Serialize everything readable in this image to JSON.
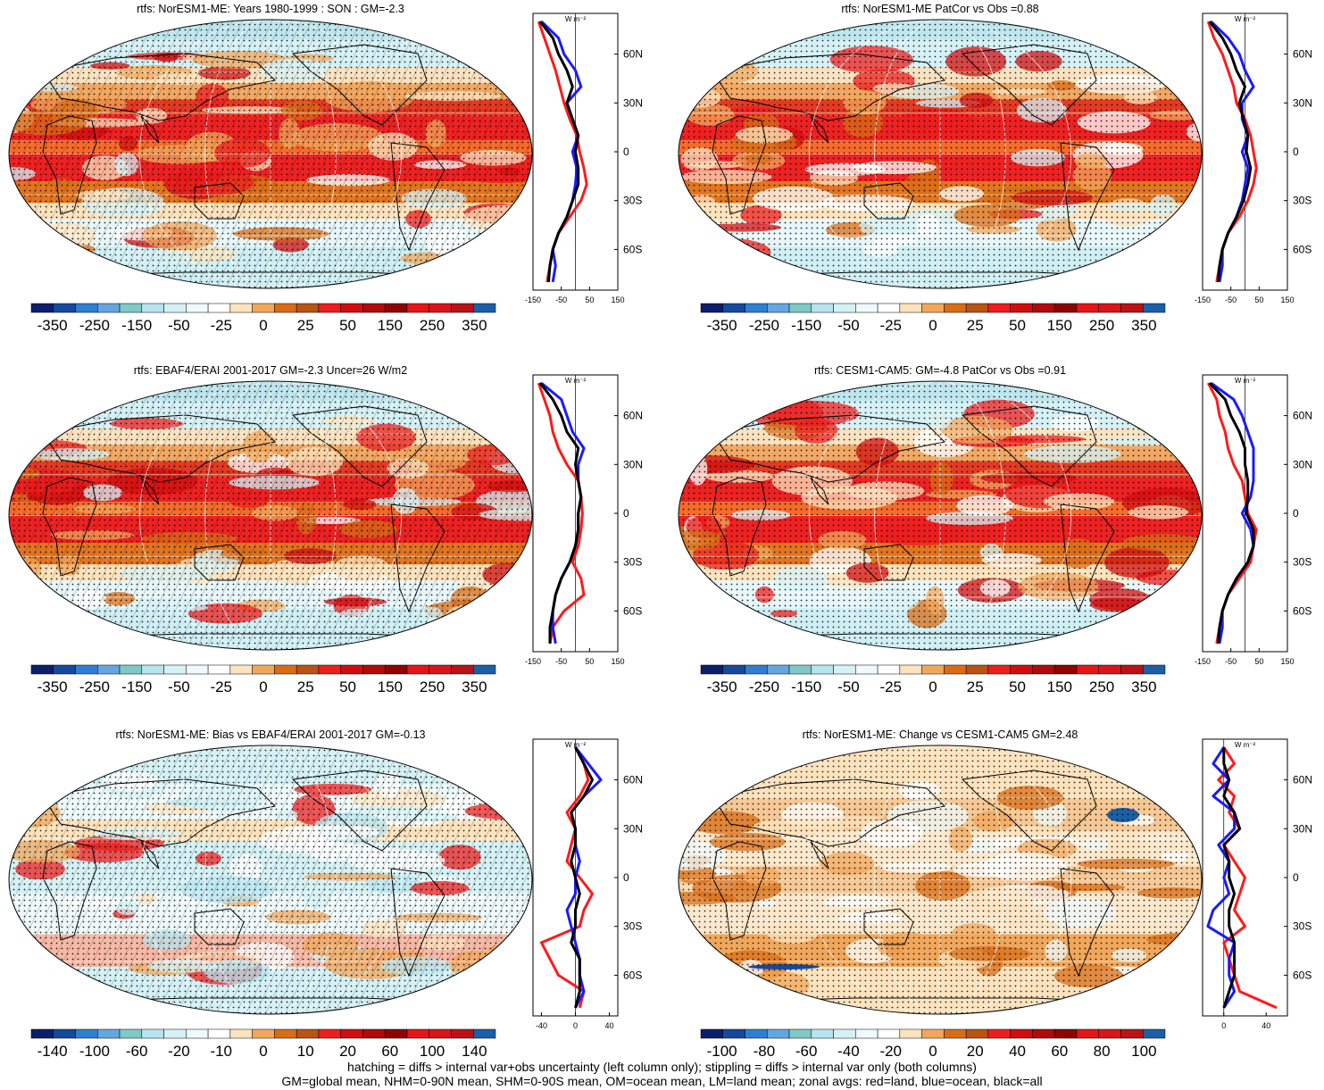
{
  "figure": {
    "footer_lines": [
      "hatching = diffs > internal var+obs uncertainty (left column only); stippling = diffs > internal var only (both columns)",
      "GM=global mean, NHM=0-90N mean, SHM=0-90S mean, OM=ocean mean, LM=land mean; zonal avgs: red=land, blue=ocean, black=all"
    ],
    "colors": {
      "land": "#ff1a1a",
      "ocean": "#1a1aff",
      "all": "#000000"
    },
    "zonal_unit_label": "W m⁻²",
    "lat_ticks": [
      "60N",
      "30N",
      "0",
      "30S",
      "60S"
    ]
  },
  "panels": [
    {
      "title": "rtfs: NorESM1-ME: Years 1980-1999 : SON : GM=-2.3",
      "hatching": true,
      "stipple_density": 1,
      "bias_type": "abs",
      "colorbar": {
        "labels": [
          "-350",
          "-250",
          "-150",
          "-50",
          "-25",
          "0",
          "25",
          "50",
          "150",
          "250",
          "350"
        ]
      },
      "zonal": {
        "xticks": [
          "-150",
          "-50",
          "50",
          "150"
        ],
        "xlim": [
          -150,
          150
        ]
      }
    },
    {
      "title": "rtfs: NorESM1-ME PatCor vs Obs =0.88",
      "hatching": false,
      "stipple_density": 1,
      "bias_type": "abs",
      "colorbar": {
        "labels": [
          "-350",
          "-250",
          "-150",
          "-50",
          "-25",
          "0",
          "25",
          "50",
          "150",
          "250",
          "350"
        ]
      },
      "zonal": {
        "xticks": [
          "-150",
          "-50",
          "50",
          "150"
        ],
        "xlim": [
          -150,
          150
        ]
      }
    },
    {
      "title": "rtfs: EBAF4/ERAI 2001-2017 GM=-2.3 Uncer=26 W/m2",
      "hatching": true,
      "stipple_density": 1,
      "bias_type": "abs",
      "colorbar": {
        "labels": [
          "-350",
          "-250",
          "-150",
          "-50",
          "-25",
          "0",
          "25",
          "50",
          "150",
          "250",
          "350"
        ]
      },
      "zonal": {
        "xticks": [
          "-150",
          "-50",
          "50",
          "150"
        ],
        "xlim": [
          -150,
          150
        ]
      }
    },
    {
      "title": "rtfs: CESM1-CAM5: GM=-4.8 PatCor vs Obs =0.91",
      "hatching": false,
      "stipple_density": 1,
      "bias_type": "abs",
      "colorbar": {
        "labels": [
          "-350",
          "-250",
          "-150",
          "-50",
          "-25",
          "0",
          "25",
          "50",
          "150",
          "250",
          "350"
        ]
      },
      "zonal": {
        "xticks": [
          "-150",
          "-50",
          "50",
          "150"
        ],
        "xlim": [
          -150,
          150
        ]
      }
    },
    {
      "title": "rtfs: NorESM1-ME: Bias vs EBAF4/ERAI 2001-2017  GM=-0.13",
      "hatching": true,
      "stipple_density": 1,
      "bias_type": "bias",
      "colorbar": {
        "labels": [
          "-140",
          "-100",
          "-60",
          "-20",
          "-10",
          "0",
          "10",
          "20",
          "60",
          "100",
          "140"
        ]
      },
      "zonal": {
        "xticks": [
          "-40",
          "0",
          "40"
        ],
        "xlim": [
          -50,
          50
        ]
      }
    },
    {
      "title": "rtfs: NorESM1-ME: Change vs CESM1-CAM5 GM=2.48",
      "hatching": false,
      "stipple_density": 1,
      "bias_type": "change",
      "colorbar": {
        "labels": [
          "-100",
          "-80",
          "-60",
          "-40",
          "-20",
          "0",
          "20",
          "40",
          "60",
          "80",
          "100"
        ]
      },
      "zonal": {
        "xticks": [
          "0",
          "40"
        ],
        "xlim": [
          -20,
          60
        ]
      }
    }
  ],
  "chart_data": [
    {
      "type": "line",
      "title": "rtfs: NorESM1-ME: Years 1980-1999 : SON : GM=-2.3",
      "xlabel": "W m⁻²",
      "ylabel": "",
      "y": [
        80,
        70,
        60,
        50,
        40,
        30,
        20,
        10,
        0,
        -10,
        -20,
        -30,
        -40,
        -50,
        -60,
        -70,
        -80
      ],
      "series": [
        {
          "name": "land",
          "values": [
            -130,
            -110,
            -90,
            -70,
            -55,
            -40,
            -20,
            5,
            15,
            30,
            40,
            20,
            -20,
            -60,
            -80,
            -90,
            -100
          ]
        },
        {
          "name": "ocean",
          "values": [
            -120,
            -60,
            -40,
            0,
            20,
            -30,
            -10,
            10,
            -10,
            5,
            0,
            -10,
            -30,
            -60,
            -80,
            -70,
            -80
          ]
        },
        {
          "name": "all",
          "values": [
            -125,
            -80,
            -60,
            -30,
            -10,
            -30,
            -10,
            10,
            0,
            10,
            10,
            -10,
            -30,
            -60,
            -80,
            -90,
            -95
          ]
        }
      ]
    },
    {
      "type": "line",
      "title": "rtfs: NorESM1-ME PatCor vs Obs =0.88",
      "xlabel": "W m⁻²",
      "ylabel": "",
      "y": [
        80,
        70,
        60,
        50,
        40,
        30,
        20,
        10,
        0,
        -10,
        -20,
        -30,
        -40,
        -50,
        -60,
        -70,
        -80
      ],
      "series": [
        {
          "name": "land",
          "values": [
            -130,
            -110,
            -80,
            -60,
            -40,
            -30,
            0,
            20,
            30,
            40,
            30,
            10,
            -20,
            -60,
            -80,
            -90,
            -100
          ]
        },
        {
          "name": "ocean",
          "values": [
            -120,
            -60,
            -20,
            0,
            30,
            -10,
            -10,
            10,
            -10,
            10,
            0,
            -10,
            -30,
            -60,
            -80,
            -80,
            -90
          ]
        },
        {
          "name": "all",
          "values": [
            -125,
            -80,
            -50,
            -30,
            0,
            -20,
            -5,
            10,
            5,
            20,
            10,
            -5,
            -30,
            -60,
            -80,
            -90,
            -95
          ]
        }
      ]
    },
    {
      "type": "line",
      "title": "rtfs: EBAF4/ERAI 2001-2017 GM=-2.3 Uncer=26 W/m2",
      "xlabel": "W m⁻²",
      "ylabel": "",
      "y": [
        80,
        70,
        60,
        50,
        40,
        30,
        20,
        10,
        0,
        -10,
        -20,
        -30,
        -40,
        -50,
        -60,
        -70,
        -80
      ],
      "series": [
        {
          "name": "land",
          "values": [
            -130,
            -110,
            -90,
            -80,
            -60,
            -30,
            10,
            20,
            25,
            20,
            10,
            -10,
            20,
            30,
            -40,
            -80,
            -90
          ]
        },
        {
          "name": "ocean",
          "values": [
            -120,
            -50,
            -30,
            -10,
            30,
            10,
            10,
            20,
            10,
            10,
            0,
            -20,
            -50,
            -70,
            -80,
            -80,
            -70
          ]
        },
        {
          "name": "all",
          "values": [
            -125,
            -80,
            -50,
            -30,
            10,
            0,
            10,
            20,
            10,
            10,
            0,
            -20,
            -50,
            -70,
            -80,
            -90,
            -90
          ]
        }
      ]
    },
    {
      "type": "line",
      "title": "rtfs: CESM1-CAM5: GM=-4.8 PatCor vs Obs =0.91",
      "xlabel": "W m⁻²",
      "ylabel": "",
      "y": [
        80,
        70,
        60,
        50,
        40,
        30,
        20,
        10,
        0,
        -10,
        -20,
        -30,
        -40,
        -50,
        -60,
        -70,
        -80
      ],
      "series": [
        {
          "name": "land",
          "values": [
            -130,
            -100,
            -90,
            -70,
            -60,
            -40,
            -10,
            0,
            10,
            40,
            30,
            20,
            -20,
            -60,
            -80,
            -90,
            -100
          ]
        },
        {
          "name": "ocean",
          "values": [
            -120,
            -40,
            -10,
            10,
            30,
            30,
            30,
            20,
            -10,
            20,
            30,
            10,
            -30,
            -60,
            -80,
            -80,
            -90
          ]
        },
        {
          "name": "all",
          "values": [
            -125,
            -70,
            -50,
            -20,
            0,
            0,
            10,
            10,
            5,
            30,
            30,
            10,
            -30,
            -60,
            -80,
            -90,
            -95
          ]
        }
      ]
    },
    {
      "type": "line",
      "title": "rtfs: NorESM1-ME: Bias vs EBAF4/ERAI 2001-2017  GM=-0.13",
      "xlabel": "W m⁻²",
      "ylabel": "",
      "y": [
        80,
        70,
        60,
        50,
        40,
        30,
        20,
        10,
        0,
        -10,
        -20,
        -30,
        -40,
        -50,
        -60,
        -70,
        -80
      ],
      "series": [
        {
          "name": "land",
          "values": [
            0,
            10,
            15,
            5,
            -10,
            0,
            -5,
            -10,
            5,
            20,
            10,
            5,
            -40,
            -30,
            -20,
            10,
            5
          ]
        },
        {
          "name": "ocean",
          "values": [
            0,
            15,
            30,
            10,
            -5,
            0,
            0,
            5,
            0,
            0,
            -10,
            -5,
            0,
            5,
            5,
            10,
            0
          ]
        },
        {
          "name": "all",
          "values": [
            0,
            10,
            20,
            10,
            -5,
            0,
            0,
            -5,
            0,
            5,
            0,
            0,
            -5,
            5,
            5,
            5,
            0
          ]
        }
      ]
    },
    {
      "type": "line",
      "title": "rtfs: NorESM1-ME: Change vs CESM1-CAM5 GM=2.48",
      "xlabel": "W m⁻²",
      "ylabel": "",
      "y": [
        80,
        70,
        60,
        50,
        40,
        30,
        20,
        10,
        0,
        -10,
        -20,
        -30,
        -40,
        -50,
        -60,
        -70,
        -80
      ],
      "series": [
        {
          "name": "land",
          "values": [
            0,
            10,
            -5,
            10,
            5,
            15,
            0,
            10,
            20,
            15,
            10,
            20,
            0,
            5,
            10,
            15,
            50
          ]
        },
        {
          "name": "ocean",
          "values": [
            0,
            -10,
            5,
            -10,
            10,
            10,
            -5,
            5,
            0,
            5,
            -10,
            -15,
            10,
            5,
            5,
            10,
            0
          ]
        },
        {
          "name": "all",
          "values": [
            0,
            0,
            5,
            0,
            10,
            15,
            0,
            5,
            5,
            10,
            5,
            5,
            10,
            10,
            10,
            5,
            0
          ]
        }
      ]
    }
  ]
}
